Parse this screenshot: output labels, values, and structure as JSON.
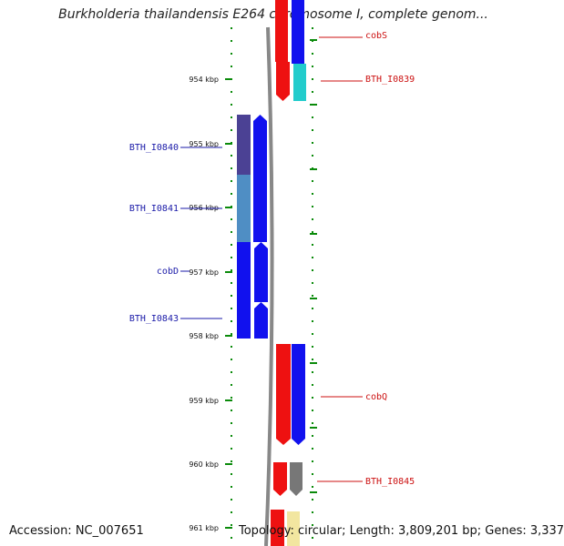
{
  "title": "Burkholderia thailandensis E264 chromosome I, complete genom...",
  "footer": {
    "accession": "Accession: NC_007651",
    "topology": "Topology: circular; Length: 3,809,201 bp; Genes: 3,337"
  },
  "colors": {
    "forward": "#ee1111",
    "reverse": "#1111ee",
    "cyan": "#22cccc",
    "gray": "#777777",
    "yellow": "#f2e6a0",
    "purple": "#4b4194",
    "steel": "#4f8ec4",
    "tick": "#0a8a0a",
    "backbone": "#888888"
  },
  "ticks": {
    "left_labels": [
      "954 kbp",
      "955 kbp",
      "956 kbp",
      "957 kbp",
      "958 kbp",
      "959 kbp",
      "960 kbp",
      "961 kbp"
    ]
  },
  "genes_left": [
    {
      "label": "BTH_I0840",
      "color": "purple"
    },
    {
      "label": "BTH_I0841",
      "color": "steel"
    },
    {
      "label": "cobD",
      "color": "reverse"
    },
    {
      "label": "BTH_I0843",
      "color": "reverse"
    }
  ],
  "genes_right": [
    {
      "label": "cobS",
      "color": "forward"
    },
    {
      "label": "BTH_I0839",
      "color": "cyan"
    },
    {
      "label": "cobQ",
      "color": "forward"
    },
    {
      "label": "BTH_I0845",
      "color": "gray"
    }
  ]
}
